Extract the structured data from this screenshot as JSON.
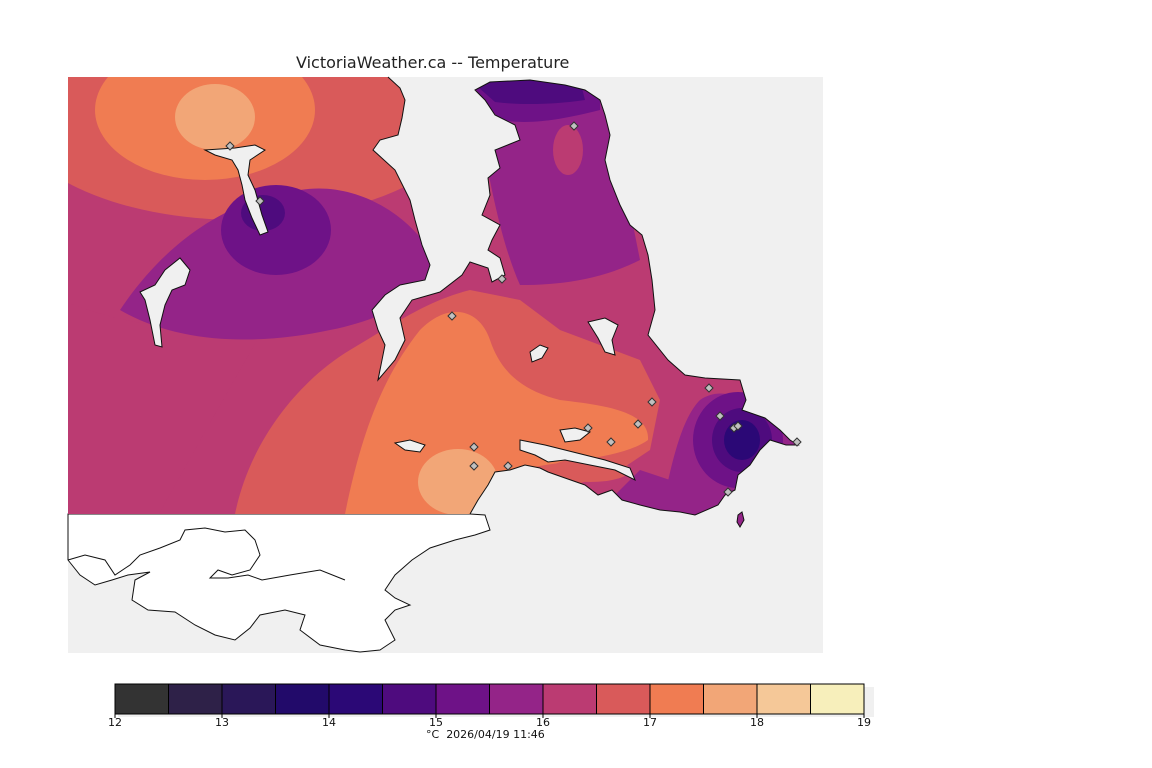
{
  "title": "VictoriaWeather.ca -- Temperature",
  "colorbar": {
    "unit": "°C",
    "timestamp": "2026/04/19 11:46",
    "ticks": [
      "12",
      "13",
      "14",
      "15",
      "16",
      "17",
      "18",
      "19"
    ],
    "levels": [
      {
        "from": 12.0,
        "to": 12.5,
        "color": "#333333"
      },
      {
        "from": 12.5,
        "to": 13.0,
        "color": "#2e2148"
      },
      {
        "from": 13.0,
        "to": 13.5,
        "color": "#2a1758"
      },
      {
        "from": 13.5,
        "to": 14.0,
        "color": "#220a6a"
      },
      {
        "from": 14.0,
        "to": 14.5,
        "color": "#2b0876"
      },
      {
        "from": 14.5,
        "to": 15.0,
        "color": "#4e0b7e"
      },
      {
        "from": 15.0,
        "to": 15.5,
        "color": "#6e1287"
      },
      {
        "from": 15.5,
        "to": 16.0,
        "color": "#942488"
      },
      {
        "from": 16.0,
        "to": 16.5,
        "color": "#bb3b72"
      },
      {
        "from": 16.5,
        "to": 17.0,
        "color": "#d95a5a"
      },
      {
        "from": 17.0,
        "to": 17.5,
        "color": "#f07c52"
      },
      {
        "from": 17.5,
        "to": 18.0,
        "color": "#f2a677"
      },
      {
        "from": 18.0,
        "to": 18.5,
        "color": "#f5c898"
      },
      {
        "from": 18.5,
        "to": 19.0,
        "color": "#f7efbb"
      }
    ]
  },
  "map": {
    "water_color": "#f0f0f0",
    "land_outside_color": "#ffffff",
    "station_count": 17
  }
}
